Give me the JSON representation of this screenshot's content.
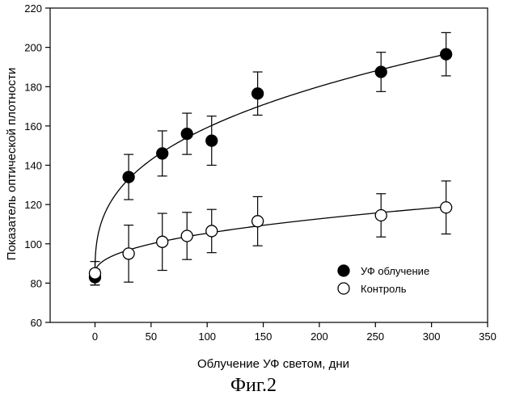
{
  "chart_data": {
    "type": "scatter",
    "xlabel": "Облучение УФ светом, дни",
    "ylabel": "Показатель оптической плотности",
    "xlim": [
      -40,
      350
    ],
    "ylim": [
      60,
      220
    ],
    "xticks": [
      0,
      50,
      100,
      150,
      200,
      250,
      300,
      350
    ],
    "yticks": [
      60,
      80,
      100,
      120,
      140,
      160,
      180,
      200,
      220
    ],
    "legend_position": "right-middle",
    "series": [
      {
        "name": "УФ облучение",
        "marker": "filled-circle",
        "color": "#000000",
        "x": [
          0,
          30,
          60,
          82,
          104,
          145,
          255,
          313
        ],
        "y": [
          83,
          134,
          146,
          156,
          152.5,
          176.5,
          187.5,
          196.5
        ],
        "err": [
          4,
          11.5,
          11.5,
          10.5,
          12.5,
          11,
          10,
          11
        ],
        "fit": "power"
      },
      {
        "name": "Контроль",
        "marker": "open-circle",
        "color": "#000000",
        "x": [
          0,
          30,
          60,
          82,
          104,
          145,
          255,
          313
        ],
        "y": [
          85,
          95,
          101,
          104,
          106.5,
          111.5,
          114.5,
          118.5
        ],
        "err": [
          6,
          14.5,
          14.5,
          12,
          11,
          12.5,
          11,
          13.5
        ],
        "fit": "power"
      }
    ]
  },
  "caption": "Фиг.2"
}
